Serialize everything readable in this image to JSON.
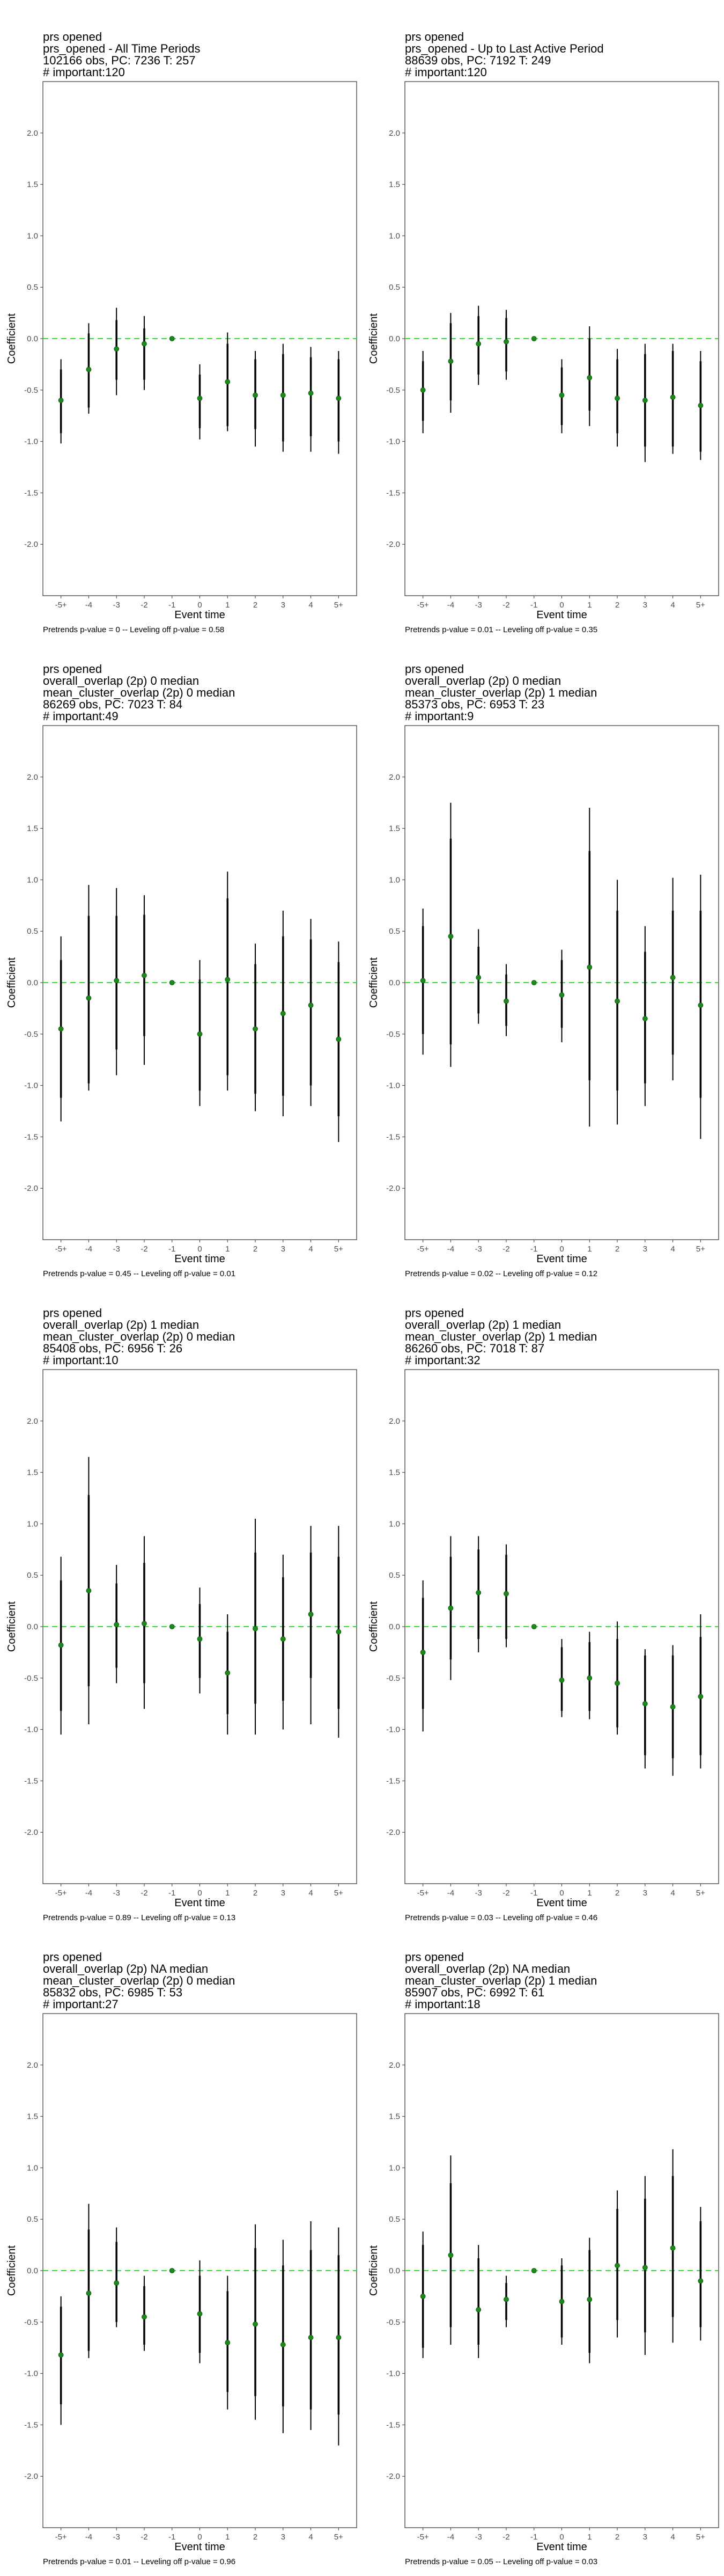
{
  "chart_data": [
    {
      "type": "scatter",
      "title_lines": [
        "prs opened",
        "prs_opened - All Time Periods",
        "102166 obs, PC: 7236 T: 257",
        "# important:120"
      ],
      "xlabel": "Event time",
      "ylabel": "Coefficient",
      "categories": [
        "-5+",
        "-4",
        "-3",
        "-2",
        "-1",
        "0",
        "1",
        "2",
        "3",
        "4",
        "5+"
      ],
      "ylim": [
        -2.5,
        2.5
      ],
      "yticks": [
        "2.0",
        "1.5",
        "1.0",
        "0.5",
        "0.0",
        "-0.5",
        "-1.0",
        "-1.5",
        "-2.0"
      ],
      "estimates": [
        -0.6,
        -0.3,
        -0.1,
        -0.05,
        0.0,
        -0.58,
        -0.42,
        -0.55,
        -0.55,
        -0.53,
        -0.58
      ],
      "ci95_low": [
        -1.02,
        -0.73,
        -0.55,
        -0.5,
        0.0,
        -0.98,
        -0.9,
        -1.05,
        -1.1,
        -1.1,
        -1.12
      ],
      "ci95_high": [
        -0.2,
        0.15,
        0.3,
        0.22,
        0.0,
        -0.25,
        0.06,
        -0.12,
        -0.05,
        -0.08,
        -0.12
      ],
      "ci90_low": [
        -0.92,
        -0.67,
        -0.4,
        -0.4,
        0.0,
        -0.87,
        -0.85,
        -0.88,
        -1.0,
        -0.95,
        -1.0
      ],
      "ci90_high": [
        -0.3,
        0.05,
        0.18,
        0.1,
        0.0,
        -0.35,
        -0.05,
        -0.2,
        -0.15,
        -0.18,
        -0.2
      ],
      "footer": "Pretrends p-value = 0 -- Leveling off p-value = 0.58"
    },
    {
      "type": "scatter",
      "title_lines": [
        "prs opened",
        "prs_opened - Up to Last Active Period",
        "88639 obs, PC: 7192 T: 249",
        "# important:120"
      ],
      "xlabel": "Event time",
      "ylabel": "Coefficient",
      "categories": [
        "-5+",
        "-4",
        "-3",
        "-2",
        "-1",
        "0",
        "1",
        "2",
        "3",
        "4",
        "5+"
      ],
      "ylim": [
        -2.5,
        2.5
      ],
      "yticks": [
        "2.0",
        "1.5",
        "1.0",
        "0.5",
        "0.0",
        "-0.5",
        "-1.0",
        "-1.5",
        "-2.0"
      ],
      "estimates": [
        -0.5,
        -0.22,
        -0.05,
        -0.03,
        0.0,
        -0.55,
        -0.38,
        -0.58,
        -0.6,
        -0.57,
        -0.65
      ],
      "ci95_low": [
        -0.92,
        -0.72,
        -0.45,
        -0.4,
        0.0,
        -0.92,
        -0.85,
        -1.05,
        -1.2,
        -1.12,
        -1.18
      ],
      "ci95_high": [
        -0.12,
        0.25,
        0.32,
        0.28,
        0.0,
        -0.2,
        0.12,
        -0.1,
        -0.05,
        -0.05,
        -0.12
      ],
      "ci90_low": [
        -0.8,
        -0.6,
        -0.35,
        -0.32,
        0.0,
        -0.84,
        -0.7,
        -0.92,
        -1.05,
        -1.05,
        -1.1
      ],
      "ci90_high": [
        -0.22,
        0.15,
        0.22,
        0.2,
        0.0,
        -0.28,
        0.0,
        -0.2,
        -0.15,
        -0.12,
        -0.22
      ],
      "footer": "Pretrends p-value = 0.01 -- Leveling off p-value = 0.35"
    },
    {
      "type": "scatter",
      "title_lines": [
        "prs opened",
        "overall_overlap (2p) 0 median",
        "mean_cluster_overlap (2p) 0 median",
        "86269 obs, PC: 7023 T: 84",
        "# important:49"
      ],
      "xlabel": "Event time",
      "ylabel": "Coefficient",
      "categories": [
        "-5+",
        "-4",
        "-3",
        "-2",
        "-1",
        "0",
        "1",
        "2",
        "3",
        "4",
        "5+"
      ],
      "ylim": [
        -2.5,
        2.5
      ],
      "yticks": [
        "2.0",
        "1.5",
        "1.0",
        "0.5",
        "0.0",
        "-0.5",
        "-1.0",
        "-1.5",
        "-2.0"
      ],
      "estimates": [
        -0.45,
        -0.15,
        0.02,
        0.07,
        0.0,
        -0.5,
        0.03,
        -0.45,
        -0.3,
        -0.22,
        -0.55
      ],
      "ci95_low": [
        -1.35,
        -1.05,
        -0.9,
        -0.8,
        0.0,
        -1.2,
        -1.05,
        -1.25,
        -1.3,
        -1.2,
        -1.55
      ],
      "ci95_high": [
        0.45,
        0.95,
        0.92,
        0.85,
        0.0,
        0.22,
        1.08,
        0.38,
        0.7,
        0.62,
        0.4
      ],
      "ci90_low": [
        -1.12,
        -0.98,
        -0.65,
        -0.52,
        0.0,
        -1.05,
        -0.9,
        -1.08,
        -1.1,
        -1.0,
        -1.3
      ],
      "ci90_high": [
        0.22,
        0.65,
        0.65,
        0.66,
        0.0,
        0.03,
        0.82,
        0.18,
        0.45,
        0.42,
        0.2
      ],
      "footer": "Pretrends p-value = 0.45 -- Leveling off p-value = 0.01"
    },
    {
      "type": "scatter",
      "title_lines": [
        "prs opened",
        "overall_overlap (2p) 0 median",
        "mean_cluster_overlap (2p) 1 median",
        "85373 obs, PC: 6953 T: 23",
        "# important:9"
      ],
      "xlabel": "Event time",
      "ylabel": "Coefficient",
      "categories": [
        "-5+",
        "-4",
        "-3",
        "-2",
        "-1",
        "0",
        "1",
        "2",
        "3",
        "4",
        "5+"
      ],
      "ylim": [
        -2.5,
        2.5
      ],
      "yticks": [
        "2.0",
        "1.5",
        "1.0",
        "0.5",
        "0.0",
        "-0.5",
        "-1.0",
        "-1.5",
        "-2.0"
      ],
      "estimates": [
        0.02,
        0.45,
        0.05,
        -0.18,
        0.0,
        -0.12,
        0.15,
        -0.18,
        -0.35,
        0.05,
        -0.22
      ],
      "ci95_low": [
        -0.7,
        -0.82,
        -0.4,
        -0.52,
        0.0,
        -0.58,
        -1.4,
        -1.38,
        -1.2,
        -0.95,
        -1.52
      ],
      "ci95_high": [
        0.72,
        1.75,
        0.52,
        0.18,
        0.0,
        0.32,
        1.7,
        1.0,
        0.55,
        1.02,
        1.05
      ],
      "ci90_low": [
        -0.5,
        -0.6,
        -0.3,
        -0.42,
        0.0,
        -0.44,
        -0.95,
        -1.05,
        -0.98,
        -0.7,
        -1.12
      ],
      "ci90_high": [
        0.55,
        1.4,
        0.35,
        0.08,
        0.0,
        0.22,
        1.28,
        0.7,
        0.3,
        0.7,
        0.7
      ],
      "footer": "Pretrends p-value = 0.02 -- Leveling off p-value = 0.12"
    },
    {
      "type": "scatter",
      "title_lines": [
        "prs opened",
        "overall_overlap (2p) 1 median",
        "mean_cluster_overlap (2p) 0 median",
        "85408 obs, PC: 6956 T: 26",
        "# important:10"
      ],
      "xlabel": "Event time",
      "ylabel": "Coefficient",
      "categories": [
        "-5+",
        "-4",
        "-3",
        "-2",
        "-1",
        "0",
        "1",
        "2",
        "3",
        "4",
        "5+"
      ],
      "ylim": [
        -2.5,
        2.5
      ],
      "yticks": [
        "2.0",
        "1.5",
        "1.0",
        "0.5",
        "0.0",
        "-0.5",
        "-1.0",
        "-1.5",
        "-2.0"
      ],
      "estimates": [
        -0.18,
        0.35,
        0.02,
        0.03,
        0.0,
        -0.12,
        -0.45,
        -0.02,
        -0.12,
        0.12,
        -0.05
      ],
      "ci95_low": [
        -1.05,
        -0.95,
        -0.55,
        -0.8,
        0.0,
        -0.65,
        -1.05,
        -1.05,
        -1.0,
        -0.95,
        -1.08
      ],
      "ci95_high": [
        0.68,
        1.65,
        0.6,
        0.88,
        0.0,
        0.38,
        0.12,
        1.05,
        0.7,
        0.98,
        0.98
      ],
      "ci90_low": [
        -0.82,
        -0.58,
        -0.4,
        -0.55,
        0.0,
        -0.5,
        -0.85,
        -0.75,
        -0.72,
        -0.5,
        -0.8
      ],
      "ci90_high": [
        0.45,
        1.28,
        0.42,
        0.62,
        0.0,
        0.22,
        -0.05,
        0.72,
        0.48,
        0.72,
        0.68
      ],
      "footer": "Pretrends p-value = 0.89 -- Leveling off p-value = 0.13"
    },
    {
      "type": "scatter",
      "title_lines": [
        "prs opened",
        "overall_overlap (2p) 1 median",
        "mean_cluster_overlap (2p) 1 median",
        "86260 obs, PC: 7018 T: 87",
        "# important:32"
      ],
      "xlabel": "Event time",
      "ylabel": "Coefficient",
      "categories": [
        "-5+",
        "-4",
        "-3",
        "-2",
        "-1",
        "0",
        "1",
        "2",
        "3",
        "4",
        "5+"
      ],
      "ylim": [
        -2.5,
        2.5
      ],
      "yticks": [
        "2.0",
        "1.5",
        "1.0",
        "0.5",
        "0.0",
        "-0.5",
        "-1.0",
        "-1.5",
        "-2.0"
      ],
      "estimates": [
        -0.25,
        0.18,
        0.33,
        0.32,
        0.0,
        -0.52,
        -0.5,
        -0.55,
        -0.75,
        -0.78,
        -0.68
      ],
      "ci95_low": [
        -1.02,
        -0.52,
        -0.25,
        -0.2,
        0.0,
        -0.88,
        -0.9,
        -1.05,
        -1.38,
        -1.45,
        -1.38
      ],
      "ci95_high": [
        0.45,
        0.88,
        0.88,
        0.8,
        0.0,
        -0.12,
        -0.05,
        0.05,
        -0.22,
        -0.18,
        0.12
      ],
      "ci90_low": [
        -0.8,
        -0.32,
        -0.12,
        -0.12,
        0.0,
        -0.82,
        -0.82,
        -0.98,
        -1.25,
        -1.28,
        -1.25
      ],
      "ci90_high": [
        0.28,
        0.68,
        0.75,
        0.7,
        0.0,
        -0.2,
        -0.15,
        -0.12,
        -0.28,
        -0.28,
        -0.1
      ],
      "footer": "Pretrends p-value = 0.03 -- Leveling off p-value = 0.46"
    },
    {
      "type": "scatter",
      "title_lines": [
        "prs opened",
        "overall_overlap (2p) NA median",
        "mean_cluster_overlap (2p) 0 median",
        "85832 obs, PC: 6985 T: 53",
        "# important:27"
      ],
      "xlabel": "Event time",
      "ylabel": "Coefficient",
      "categories": [
        "-5+",
        "-4",
        "-3",
        "-2",
        "-1",
        "0",
        "1",
        "2",
        "3",
        "4",
        "5+"
      ],
      "ylim": [
        -2.5,
        2.5
      ],
      "yticks": [
        "2.0",
        "1.5",
        "1.0",
        "0.5",
        "0.0",
        "-0.5",
        "-1.0",
        "-1.5",
        "-2.0"
      ],
      "estimates": [
        -0.82,
        -0.22,
        -0.12,
        -0.45,
        0.0,
        -0.42,
        -0.7,
        -0.52,
        -0.72,
        -0.65,
        -0.65
      ],
      "ci95_low": [
        -1.5,
        -0.85,
        -0.55,
        -0.78,
        0.0,
        -0.9,
        -1.35,
        -1.45,
        -1.58,
        -1.55,
        -1.7
      ],
      "ci95_high": [
        -0.25,
        0.65,
        0.42,
        -0.05,
        0.0,
        0.1,
        -0.05,
        0.45,
        0.3,
        0.48,
        0.42
      ],
      "ci90_low": [
        -1.3,
        -0.78,
        -0.5,
        -0.72,
        0.0,
        -0.8,
        -1.18,
        -1.22,
        -1.32,
        -1.35,
        -1.4
      ],
      "ci90_high": [
        -0.35,
        0.4,
        0.28,
        -0.15,
        0.0,
        -0.05,
        -0.2,
        0.22,
        0.05,
        0.2,
        0.15
      ],
      "footer": "Pretrends p-value = 0.01 -- Leveling off p-value = 0.96"
    },
    {
      "type": "scatter",
      "title_lines": [
        "prs opened",
        "overall_overlap (2p) NA median",
        "mean_cluster_overlap (2p) 1 median",
        "85907 obs, PC: 6992 T: 61",
        "# important:18"
      ],
      "xlabel": "Event time",
      "ylabel": "Coefficient",
      "categories": [
        "-5+",
        "-4",
        "-3",
        "-2",
        "-1",
        "0",
        "1",
        "2",
        "3",
        "4",
        "5+"
      ],
      "ylim": [
        -2.5,
        2.5
      ],
      "yticks": [
        "2.0",
        "1.5",
        "1.0",
        "0.5",
        "0.0",
        "-0.5",
        "-1.0",
        "-1.5",
        "-2.0"
      ],
      "estimates": [
        -0.25,
        0.15,
        -0.38,
        -0.28,
        0.0,
        -0.3,
        -0.28,
        0.05,
        0.03,
        0.22,
        -0.1
      ],
      "ci95_low": [
        -0.85,
        -0.72,
        -0.85,
        -0.55,
        0.0,
        -0.72,
        -0.9,
        -0.65,
        -0.82,
        -0.7,
        -0.68
      ],
      "ci95_high": [
        0.38,
        1.12,
        0.25,
        -0.05,
        0.0,
        0.12,
        0.32,
        0.78,
        0.92,
        1.18,
        0.62
      ],
      "ci90_low": [
        -0.75,
        -0.55,
        -0.72,
        -0.48,
        0.0,
        -0.65,
        -0.8,
        -0.48,
        -0.6,
        -0.45,
        -0.55
      ],
      "ci90_high": [
        0.25,
        0.85,
        0.12,
        -0.12,
        0.0,
        0.05,
        0.2,
        0.6,
        0.7,
        0.92,
        0.48
      ],
      "footer": "Pretrends p-value = 0.05 -- Leveling off p-value = 0.03"
    }
  ],
  "colors": {
    "zero_line": "#33dd33",
    "point": "#1a8a1a",
    "ci": "#000000",
    "axis_text": "#4d4d4d",
    "frame": "#333333"
  }
}
